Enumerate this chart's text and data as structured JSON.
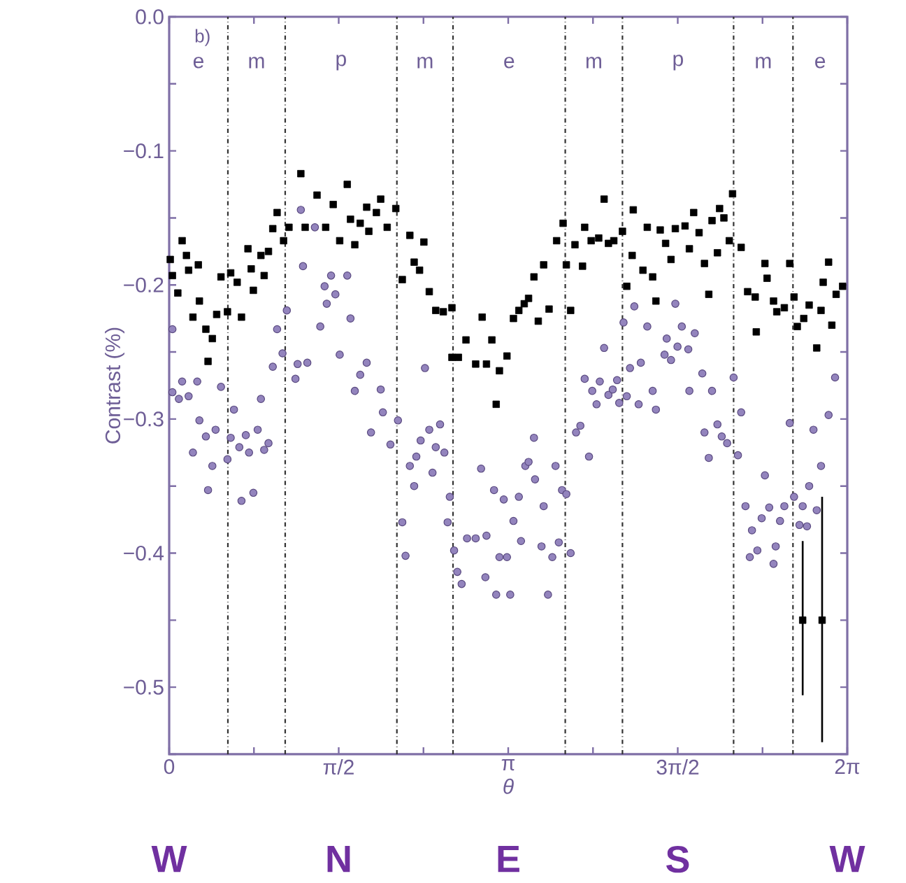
{
  "chart_data": {
    "type": "scatter",
    "xlabel": "*θ*",
    "ylabel": "Contrast (%)",
    "xlim": [
      0,
      6.2832
    ],
    "ylim": [
      -0.55,
      0.0
    ],
    "xticks": [
      {
        "value": 0,
        "label": "0"
      },
      {
        "value": 0.7854,
        "label": null
      },
      {
        "value": 1.5708,
        "label": "π/2"
      },
      {
        "value": 2.3562,
        "label": null
      },
      {
        "value": 3.1416,
        "label": "π"
      },
      {
        "value": 3.927,
        "label": null
      },
      {
        "value": 4.7124,
        "label": "3π/2"
      },
      {
        "value": 5.4978,
        "label": null
      },
      {
        "value": 6.2832,
        "label": "2π"
      }
    ],
    "yticks": [
      {
        "value": -0.55,
        "label": null
      },
      {
        "value": -0.5,
        "label": "−0.5"
      },
      {
        "value": -0.45,
        "label": null
      },
      {
        "value": -0.4,
        "label": "−0.4"
      },
      {
        "value": -0.35,
        "label": null
      },
      {
        "value": -0.3,
        "label": "−0.3"
      },
      {
        "value": -0.25,
        "label": null
      },
      {
        "value": -0.2,
        "label": "−0.2"
      },
      {
        "value": -0.15,
        "label": null
      },
      {
        "value": -0.1,
        "label": "−0.1"
      },
      {
        "value": -0.05,
        "label": null
      },
      {
        "value": 0.0,
        "label": "0.0"
      }
    ],
    "grid": false,
    "ref_lines": [
      {
        "axis": "x",
        "value": 0.544,
        "label": null,
        "line_style": "dashdot"
      },
      {
        "axis": "x",
        "value": 1.075,
        "label": null,
        "line_style": "dashdot"
      },
      {
        "axis": "x",
        "value": 2.11,
        "label": null,
        "line_style": "dashdot"
      },
      {
        "axis": "x",
        "value": 2.63,
        "label": null,
        "line_style": "dashdot"
      },
      {
        "axis": "x",
        "value": 3.67,
        "label": null,
        "line_style": "dashdot"
      },
      {
        "axis": "x",
        "value": 4.2,
        "label": null,
        "line_style": "dashdot"
      },
      {
        "axis": "x",
        "value": 5.23,
        "label": null,
        "line_style": "dashdot"
      },
      {
        "axis": "x",
        "value": 5.78,
        "label": null,
        "line_style": "dashdot"
      }
    ],
    "annotations": [
      "b)",
      "e",
      "m",
      "p",
      "m",
      "e",
      "m",
      "p",
      "m",
      "e",
      "W",
      "N",
      "E",
      "S",
      "W"
    ],
    "series": [
      {
        "marker": "square",
        "color": "#000000",
        "x": [
          0.01,
          0.03,
          0.08,
          0.12,
          0.16,
          0.18,
          0.22,
          0.27,
          0.28,
          0.34,
          0.36,
          0.4,
          0.44,
          0.48,
          0.54,
          0.57,
          0.63,
          0.67,
          0.73,
          0.76,
          0.78,
          0.85,
          0.88,
          0.92,
          0.96,
          1.0,
          1.06,
          1.11,
          1.22,
          1.26,
          1.37,
          1.45,
          1.52,
          1.58,
          1.65,
          1.68,
          1.72,
          1.77,
          1.83,
          1.85,
          1.92,
          1.96,
          2.02,
          2.1,
          2.16,
          2.23,
          2.27,
          2.32,
          2.36,
          2.41,
          2.47,
          2.54,
          2.62,
          2.62,
          2.68,
          2.75,
          2.84,
          2.9,
          2.94,
          2.99,
          3.03,
          3.06,
          3.13,
          3.19,
          3.24,
          3.29,
          3.33,
          3.38,
          3.42,
          3.47,
          3.52,
          3.59,
          3.65,
          3.68,
          3.72,
          3.76,
          3.83,
          3.85,
          3.91,
          3.98,
          4.03,
          4.07,
          4.12,
          4.2,
          4.24,
          4.29,
          4.3,
          4.39,
          4.43,
          4.48,
          4.51,
          4.55,
          4.6,
          4.65,
          4.69,
          4.78,
          4.82,
          4.86,
          4.91,
          4.96,
          5.0,
          5.03,
          5.08,
          5.1,
          5.14,
          5.22,
          5.19,
          5.3,
          5.36,
          5.43,
          5.44,
          5.52,
          5.54,
          5.6,
          5.63,
          5.7,
          5.75,
          5.79,
          5.82,
          5.88,
          5.93,
          6.0,
          6.04,
          6.06,
          6.11,
          6.14,
          6.18,
          6.24
        ],
        "values": [
          -0.181,
          -0.193,
          -0.206,
          -0.167,
          -0.178,
          -0.189,
          -0.224,
          -0.185,
          -0.212,
          -0.233,
          -0.257,
          -0.24,
          -0.222,
          -0.194,
          -0.22,
          -0.191,
          -0.198,
          -0.224,
          -0.173,
          -0.188,
          -0.204,
          -0.178,
          -0.193,
          -0.175,
          -0.158,
          -0.146,
          -0.167,
          -0.157,
          -0.117,
          -0.157,
          -0.133,
          -0.157,
          -0.14,
          -0.167,
          -0.125,
          -0.151,
          -0.17,
          -0.154,
          -0.142,
          -0.16,
          -0.146,
          -0.136,
          -0.157,
          -0.143,
          -0.196,
          -0.163,
          -0.183,
          -0.189,
          -0.168,
          -0.205,
          -0.219,
          -0.22,
          -0.217,
          -0.254,
          -0.254,
          -0.241,
          -0.259,
          -0.224,
          -0.259,
          -0.241,
          -0.289,
          -0.264,
          -0.253,
          -0.225,
          -0.219,
          -0.214,
          -0.21,
          -0.194,
          -0.227,
          -0.185,
          -0.218,
          -0.167,
          -0.154,
          -0.185,
          -0.219,
          -0.17,
          -0.186,
          -0.157,
          -0.167,
          -0.165,
          -0.136,
          -0.169,
          -0.167,
          -0.16,
          -0.201,
          -0.178,
          -0.144,
          -0.189,
          -0.157,
          -0.194,
          -0.212,
          -0.159,
          -0.169,
          -0.181,
          -0.158,
          -0.156,
          -0.173,
          -0.146,
          -0.161,
          -0.184,
          -0.207,
          -0.152,
          -0.176,
          -0.143,
          -0.15,
          -0.132,
          -0.167,
          -0.172,
          -0.205,
          -0.209,
          -0.235,
          -0.184,
          -0.195,
          -0.212,
          -0.22,
          -0.217,
          -0.184,
          -0.209,
          -0.231,
          -0.225,
          -0.215,
          -0.247,
          -0.219,
          -0.198,
          -0.183,
          -0.23,
          -0.207,
          -0.201
        ]
      },
      {
        "marker": "circle",
        "color": "#9384bd",
        "x": [
          0.03,
          0.03,
          0.09,
          0.12,
          0.18,
          0.26,
          0.28,
          0.22,
          0.34,
          0.36,
          0.4,
          0.43,
          0.48,
          0.54,
          0.57,
          0.6,
          0.65,
          0.67,
          0.71,
          0.74,
          0.78,
          0.82,
          0.85,
          0.88,
          0.92,
          0.96,
          1.0,
          1.05,
          1.09,
          1.17,
          1.19,
          1.22,
          1.24,
          1.28,
          1.35,
          1.4,
          1.44,
          1.46,
          1.5,
          1.54,
          1.58,
          1.65,
          1.68,
          1.72,
          1.77,
          1.83,
          1.87,
          1.96,
          1.98,
          2.05,
          2.12,
          2.16,
          2.19,
          2.23,
          2.27,
          2.29,
          2.33,
          2.37,
          2.41,
          2.44,
          2.47,
          2.51,
          2.55,
          2.58,
          2.6,
          2.64,
          2.67,
          2.71,
          2.76,
          2.84,
          2.89,
          2.93,
          2.94,
          3.01,
          3.03,
          3.06,
          3.1,
          3.13,
          3.16,
          3.19,
          3.24,
          3.26,
          3.3,
          3.33,
          3.38,
          3.39,
          3.45,
          3.47,
          3.51,
          3.55,
          3.58,
          3.61,
          3.64,
          3.68,
          3.72,
          3.77,
          3.81,
          3.85,
          3.89,
          3.92,
          3.96,
          3.99,
          4.03,
          4.07,
          4.11,
          4.15,
          4.17,
          4.21,
          4.24,
          4.27,
          4.31,
          4.35,
          4.37,
          4.43,
          4.48,
          4.51,
          4.59,
          4.61,
          4.65,
          4.69,
          4.71,
          4.75,
          4.81,
          4.82,
          4.87,
          4.94,
          4.96,
          5.0,
          5.03,
          5.08,
          5.12,
          5.17,
          5.23,
          5.27,
          5.3,
          5.34,
          5.38,
          5.4,
          5.45,
          5.49,
          5.52,
          5.56,
          5.6,
          5.62,
          5.66,
          5.7,
          5.75,
          5.79,
          5.84,
          5.87,
          5.91,
          5.93,
          5.97,
          6.0,
          6.04,
          6.11,
          6.17
        ],
        "values": [
          -0.233,
          -0.28,
          -0.285,
          -0.272,
          -0.283,
          -0.272,
          -0.301,
          -0.325,
          -0.313,
          -0.353,
          -0.335,
          -0.308,
          -0.276,
          -0.33,
          -0.314,
          -0.293,
          -0.321,
          -0.361,
          -0.312,
          -0.325,
          -0.355,
          -0.308,
          -0.285,
          -0.323,
          -0.318,
          -0.261,
          -0.233,
          -0.251,
          -0.219,
          -0.27,
          -0.259,
          -0.144,
          -0.186,
          -0.258,
          -0.157,
          -0.231,
          -0.201,
          -0.214,
          -0.193,
          -0.207,
          -0.252,
          -0.193,
          -0.225,
          -0.279,
          -0.267,
          -0.258,
          -0.31,
          -0.278,
          -0.295,
          -0.319,
          -0.301,
          -0.377,
          -0.402,
          -0.335,
          -0.35,
          -0.328,
          -0.316,
          -0.262,
          -0.308,
          -0.34,
          -0.321,
          -0.304,
          -0.325,
          -0.377,
          -0.358,
          -0.398,
          -0.414,
          -0.423,
          -0.389,
          -0.389,
          -0.337,
          -0.418,
          -0.387,
          -0.353,
          -0.431,
          -0.403,
          -0.36,
          -0.403,
          -0.431,
          -0.376,
          -0.358,
          -0.391,
          -0.335,
          -0.332,
          -0.314,
          -0.345,
          -0.395,
          -0.365,
          -0.431,
          -0.403,
          -0.335,
          -0.392,
          -0.353,
          -0.356,
          -0.4,
          -0.31,
          -0.305,
          -0.27,
          -0.328,
          -0.279,
          -0.289,
          -0.272,
          -0.247,
          -0.282,
          -0.278,
          -0.271,
          -0.288,
          -0.228,
          -0.283,
          -0.262,
          -0.216,
          -0.289,
          -0.258,
          -0.231,
          -0.279,
          -0.293,
          -0.252,
          -0.24,
          -0.256,
          -0.214,
          -0.246,
          -0.231,
          -0.248,
          -0.279,
          -0.236,
          -0.266,
          -0.31,
          -0.329,
          -0.279,
          -0.304,
          -0.313,
          -0.318,
          -0.269,
          -0.327,
          -0.295,
          -0.365,
          -0.403,
          -0.383,
          -0.398,
          -0.374,
          -0.342,
          -0.366,
          -0.408,
          -0.395,
          -0.376,
          -0.365,
          -0.303,
          -0.358,
          -0.379,
          -0.365,
          -0.38,
          -0.35,
          -0.308,
          -0.368,
          -0.335,
          -0.297,
          -0.269
        ]
      },
      {
        "marker": "square",
        "color": "#000000",
        "x": [
          5.87,
          6.05
        ],
        "values": [
          -0.45,
          -0.45
        ],
        "errors": [
          [
            -0.506,
            -0.391
          ],
          [
            -0.541,
            -0.358
          ]
        ]
      }
    ]
  }
}
